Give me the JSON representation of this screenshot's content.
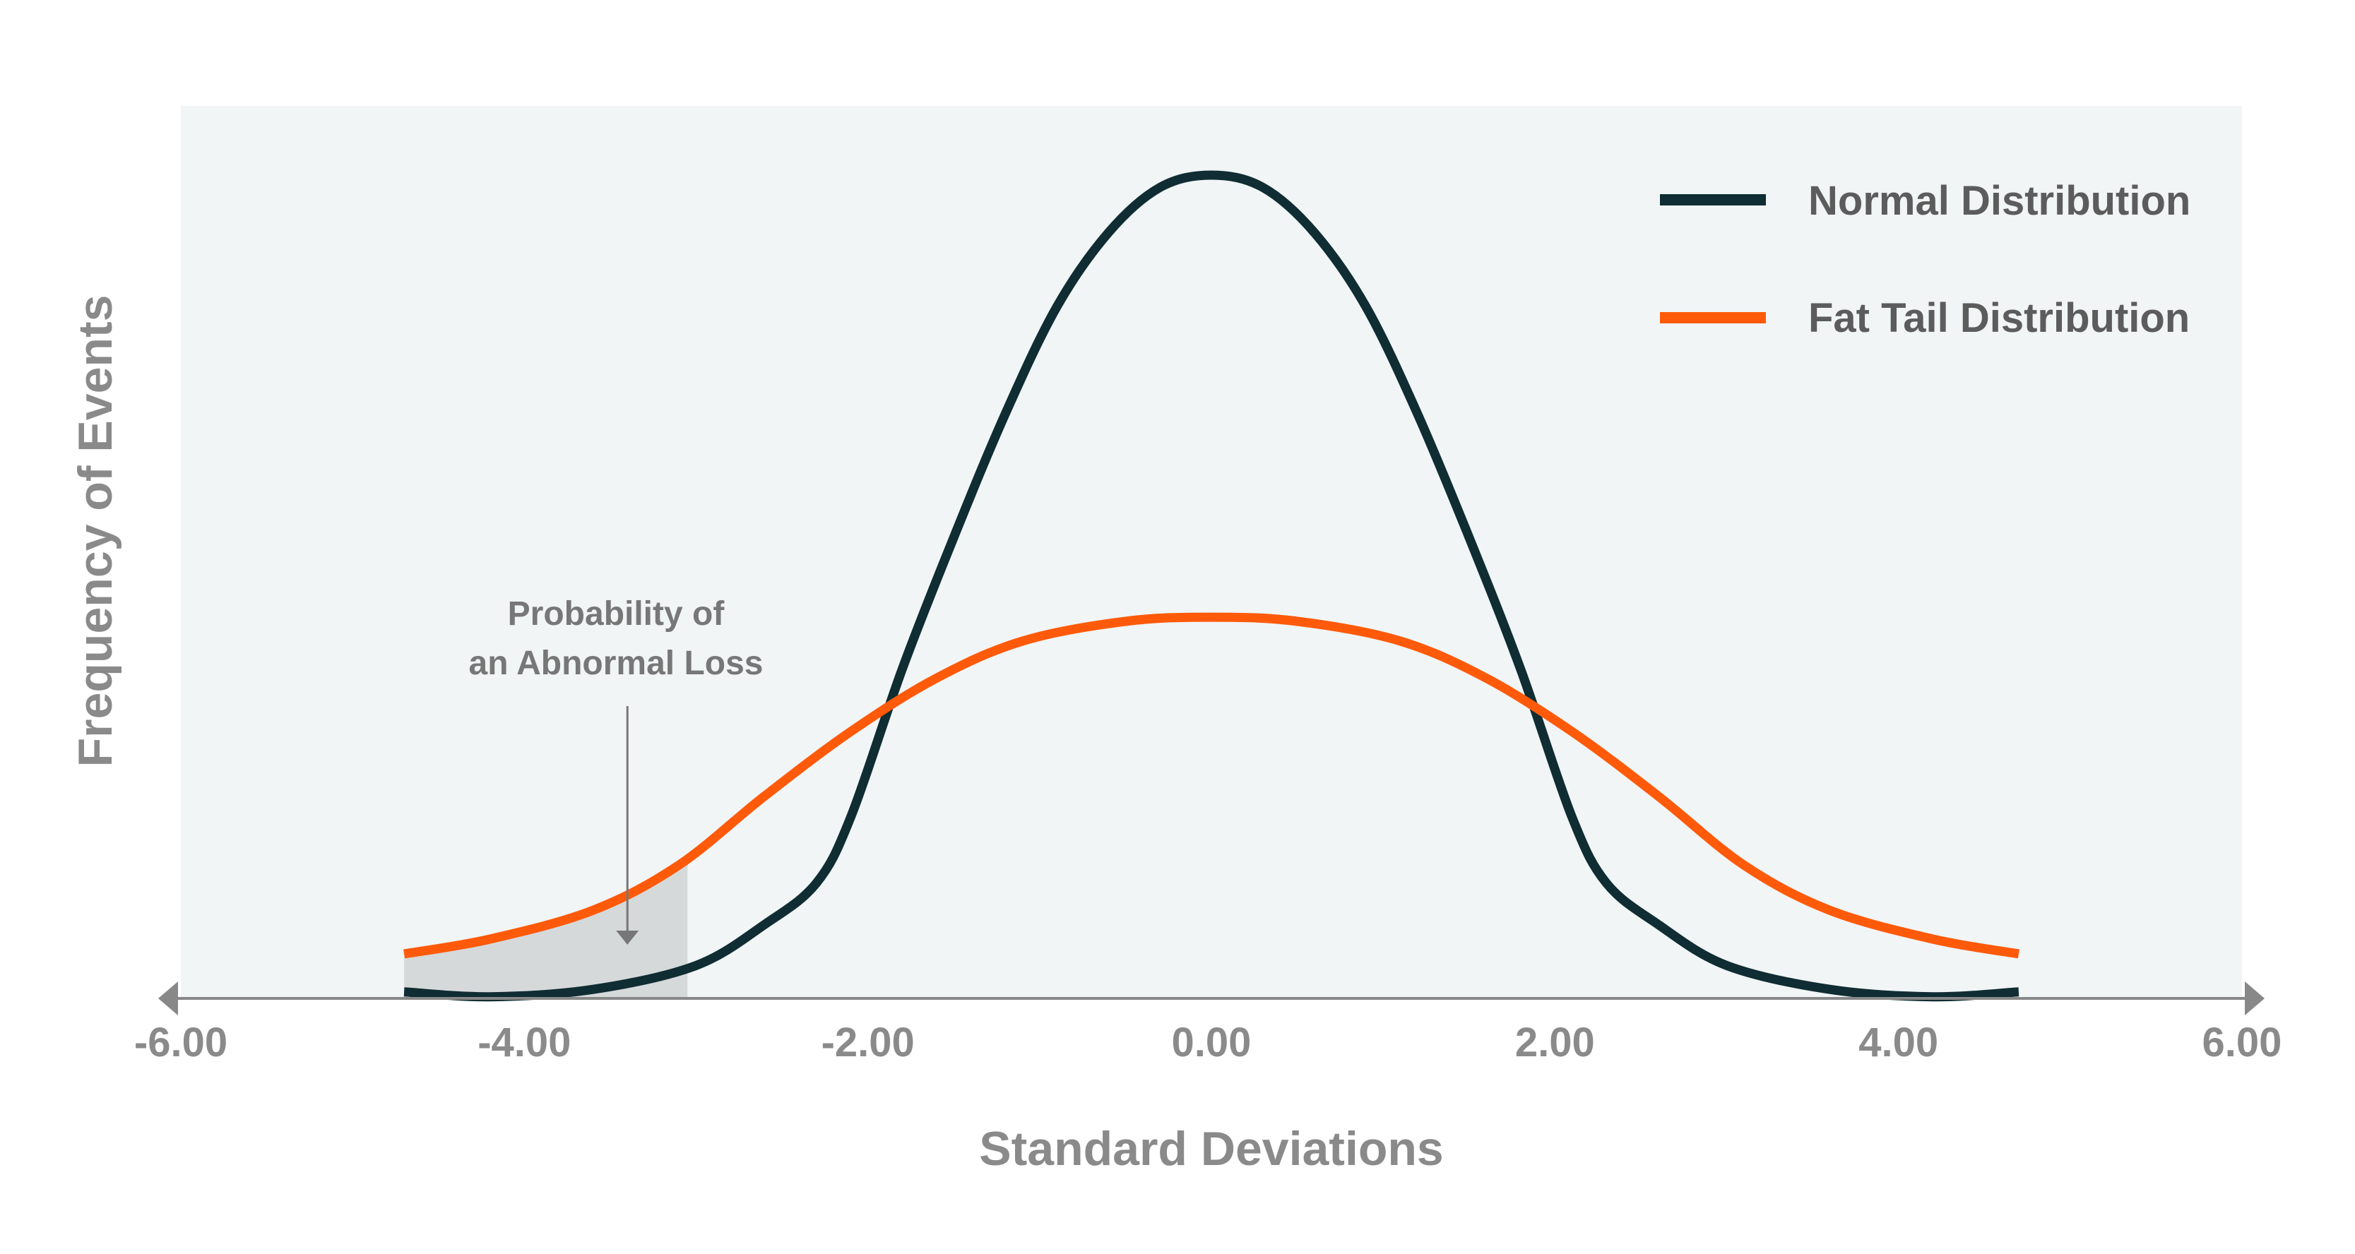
{
  "chart_data": {
    "type": "line",
    "title": "",
    "xlabel": "Standard Deviations",
    "ylabel": "Frequency of Events",
    "xlim": [
      -6,
      6
    ],
    "ylim": [
      0,
      1
    ],
    "x_ticks": [
      -6,
      -4,
      -2,
      0,
      2,
      4,
      6
    ],
    "x_tick_labels": [
      "-6.00",
      "-4.00",
      "-2.00",
      "0.00",
      "2.00",
      "4.00",
      "6.00"
    ],
    "grid": false,
    "legend_position": "top-right",
    "series": [
      {
        "name": "Normal Distribution",
        "color": "#0f2d33",
        "x": [
          -4.7,
          -4.2,
          -3.6,
          -3.0,
          -2.6,
          -2.3,
          -2.1,
          -1.8,
          -1.5,
          -1.2,
          -0.9,
          -0.6,
          -0.3,
          0.0,
          0.3,
          0.6,
          0.9,
          1.2,
          1.5,
          1.8,
          2.1,
          2.3,
          2.6,
          3.0,
          3.6,
          4.2,
          4.7
        ],
        "y": [
          0.008,
          0.002,
          0.011,
          0.04,
          0.09,
          0.14,
          0.22,
          0.4,
          0.56,
          0.71,
          0.84,
          0.93,
          0.985,
          1.0,
          0.985,
          0.93,
          0.84,
          0.71,
          0.56,
          0.4,
          0.22,
          0.14,
          0.09,
          0.04,
          0.011,
          0.002,
          0.008
        ]
      },
      {
        "name": "Fat Tail Distribution",
        "color": "#ff5a0a",
        "x": [
          -4.7,
          -4.2,
          -3.6,
          -3.1,
          -2.6,
          -2.1,
          -1.6,
          -1.1,
          -0.5,
          0.0,
          0.5,
          1.1,
          1.6,
          2.1,
          2.6,
          3.1,
          3.6,
          4.2,
          4.7
        ],
        "y": [
          0.054,
          0.072,
          0.107,
          0.162,
          0.246,
          0.324,
          0.389,
          0.434,
          0.458,
          0.463,
          0.458,
          0.434,
          0.389,
          0.324,
          0.246,
          0.162,
          0.107,
          0.072,
          0.054
        ]
      }
    ],
    "annotation": {
      "lines": [
        "Probability of",
        "an Abnormal Loss"
      ],
      "points_to_x": -3.4,
      "shaded_region_x": [
        -4.7,
        -3.05
      ]
    },
    "colors": {
      "plot_background": "#f1f5f6",
      "axis": "#888888",
      "shaded_region": "#d6d9da",
      "arrow": "#777777"
    }
  }
}
